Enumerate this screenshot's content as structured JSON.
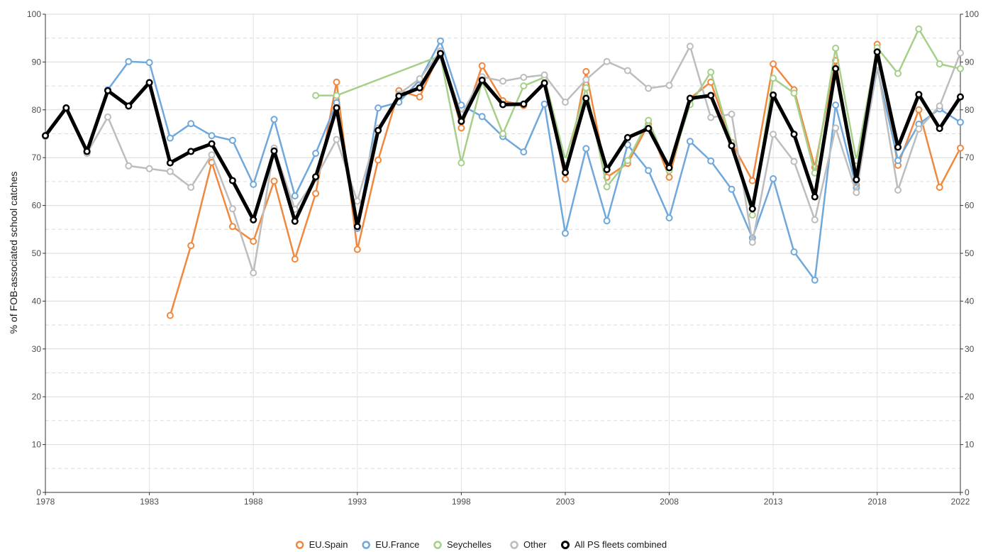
{
  "chart_data": {
    "type": "line",
    "title": "",
    "xlabel": "",
    "ylabel": "% of FOB-associated school catches",
    "xlim": [
      1978,
      2022
    ],
    "ylim": [
      0,
      100
    ],
    "x_ticks": [
      1978,
      1983,
      1988,
      1993,
      1998,
      2003,
      2008,
      2013,
      2018,
      2022
    ],
    "x_tick_labels": [
      "1978",
      "1983",
      "1988",
      "1993",
      "1998",
      "2003",
      "2008",
      "2013",
      "2018",
      "2022"
    ],
    "y_ticks": [
      0,
      10,
      20,
      30,
      40,
      50,
      60,
      70,
      80,
      90,
      100
    ],
    "y_tick_labels": [
      "0",
      "10",
      "20",
      "30",
      "40",
      "50",
      "60",
      "70",
      "80",
      "90",
      "100"
    ],
    "grid": true,
    "secondary_y_axis": true,
    "legend_position": "bottom",
    "series": [
      {
        "name": "EU.Spain",
        "color": "#F0883E",
        "points": [
          [
            1984,
            37.0
          ],
          [
            1985,
            51.6
          ],
          [
            1986,
            69.0
          ],
          [
            1987,
            55.6
          ],
          [
            1988,
            52.5
          ],
          [
            1989,
            65.1
          ],
          [
            1990,
            48.8
          ],
          [
            1991,
            62.5
          ],
          [
            1992,
            85.8
          ],
          [
            1993,
            50.8
          ],
          [
            1994,
            69.5
          ],
          [
            1995,
            84.0
          ],
          [
            1996,
            82.7
          ],
          [
            1997,
            92.3
          ],
          [
            1998,
            76.2
          ],
          [
            1999,
            89.2
          ],
          [
            2000,
            81.9
          ],
          [
            2001,
            80.9
          ],
          [
            2002,
            85.6
          ],
          [
            2003,
            65.5
          ],
          [
            2004,
            88.0
          ],
          [
            2005,
            65.9
          ],
          [
            2006,
            68.8
          ],
          [
            2007,
            77.0
          ],
          [
            2008,
            65.9
          ],
          [
            2009,
            82.4
          ],
          [
            2010,
            85.8
          ],
          [
            2011,
            73.2
          ],
          [
            2012,
            65.2
          ],
          [
            2013,
            89.6
          ],
          [
            2014,
            84.2
          ],
          [
            2015,
            68.0
          ],
          [
            2016,
            90.3
          ],
          [
            2017,
            64.3
          ],
          [
            2018,
            93.7
          ],
          [
            2019,
            68.4
          ],
          [
            2020,
            80.0
          ],
          [
            2021,
            63.8
          ],
          [
            2022,
            72.0
          ]
        ]
      },
      {
        "name": "EU.France",
        "color": "#6FA8DC",
        "points": [
          [
            1981,
            84.2
          ],
          [
            1982,
            90.1
          ],
          [
            1983,
            89.9
          ],
          [
            1984,
            74.1
          ],
          [
            1985,
            77.1
          ],
          [
            1986,
            74.6
          ],
          [
            1987,
            73.6
          ],
          [
            1988,
            64.4
          ],
          [
            1989,
            78.0
          ],
          [
            1990,
            62.0
          ],
          [
            1991,
            70.9
          ],
          [
            1992,
            81.5
          ],
          [
            1993,
            55.2
          ],
          [
            1994,
            80.4
          ],
          [
            1995,
            81.6
          ],
          [
            1996,
            86.2
          ],
          [
            1997,
            94.4
          ],
          [
            1998,
            81.0
          ],
          [
            1999,
            78.6
          ],
          [
            2000,
            74.4
          ],
          [
            2001,
            71.2
          ],
          [
            2002,
            81.2
          ],
          [
            2003,
            54.2
          ],
          [
            2004,
            71.9
          ],
          [
            2005,
            56.8
          ],
          [
            2006,
            72.7
          ],
          [
            2007,
            67.3
          ],
          [
            2008,
            57.4
          ],
          [
            2009,
            73.4
          ],
          [
            2010,
            69.3
          ],
          [
            2011,
            63.4
          ],
          [
            2012,
            53.2
          ],
          [
            2013,
            65.6
          ],
          [
            2014,
            50.3
          ],
          [
            2015,
            44.4
          ],
          [
            2016,
            81.0
          ],
          [
            2017,
            63.7
          ],
          [
            2018,
            88.8
          ],
          [
            2019,
            69.4
          ],
          [
            2020,
            77.0
          ],
          [
            2021,
            80.2
          ],
          [
            2022,
            77.4
          ]
        ]
      },
      {
        "name": "Seychelles",
        "color": "#A6D08A",
        "points": [
          [
            1991,
            83.0
          ],
          [
            1992,
            83.0
          ],
          [
            1997,
            91.3
          ],
          [
            1998,
            68.9
          ],
          [
            1999,
            86.0
          ],
          [
            2000,
            75.0
          ],
          [
            2001,
            85.0
          ],
          [
            2002,
            86.8
          ],
          [
            2003,
            69.5
          ],
          [
            2004,
            84.6
          ],
          [
            2005,
            63.9
          ],
          [
            2006,
            69.4
          ],
          [
            2007,
            77.8
          ],
          [
            2008,
            67.3
          ],
          [
            2009,
            81.1
          ],
          [
            2010,
            87.9
          ],
          [
            2011,
            73.1
          ],
          [
            2012,
            58.0
          ],
          [
            2013,
            86.6
          ],
          [
            2014,
            83.5
          ],
          [
            2015,
            66.8
          ],
          [
            2016,
            92.9
          ],
          [
            2017,
            69.4
          ],
          [
            2018,
            93.0
          ],
          [
            2019,
            87.6
          ],
          [
            2020,
            96.9
          ],
          [
            2021,
            89.6
          ],
          [
            2022,
            88.6
          ]
        ]
      },
      {
        "name": "Other",
        "color": "#BDBDBD",
        "points": [
          [
            1978,
            74.4
          ],
          [
            1979,
            80.4
          ],
          [
            1980,
            70.9
          ],
          [
            1981,
            78.5
          ],
          [
            1982,
            68.3
          ],
          [
            1983,
            67.7
          ],
          [
            1984,
            67.1
          ],
          [
            1985,
            63.8
          ],
          [
            1986,
            70.6
          ],
          [
            1987,
            59.3
          ],
          [
            1988,
            45.9
          ],
          [
            1989,
            72.0
          ],
          [
            1990,
            59.2
          ],
          [
            1991,
            65.7
          ],
          [
            1992,
            73.8
          ],
          [
            1993,
            60.9
          ],
          [
            1994,
            76.2
          ],
          [
            1995,
            83.3
          ],
          [
            1996,
            86.5
          ],
          [
            1997,
            92.3
          ],
          [
            1998,
            79.0
          ],
          [
            1999,
            86.9
          ],
          [
            2000,
            86.0
          ],
          [
            2001,
            86.8
          ],
          [
            2002,
            87.3
          ],
          [
            2003,
            81.6
          ],
          [
            2004,
            86.3
          ],
          [
            2005,
            90.1
          ],
          [
            2006,
            88.2
          ],
          [
            2007,
            84.5
          ],
          [
            2008,
            85.1
          ],
          [
            2009,
            93.3
          ],
          [
            2010,
            78.4
          ],
          [
            2011,
            79.1
          ],
          [
            2012,
            52.3
          ],
          [
            2013,
            74.9
          ],
          [
            2014,
            69.2
          ],
          [
            2015,
            57.0
          ],
          [
            2016,
            76.2
          ],
          [
            2017,
            62.7
          ],
          [
            2018,
            89.4
          ],
          [
            2019,
            63.2
          ],
          [
            2020,
            76.0
          ],
          [
            2021,
            80.8
          ],
          [
            2022,
            91.9
          ]
        ]
      },
      {
        "name": "All PS fleets combined",
        "color": "#000000",
        "points": [
          [
            1978,
            74.6
          ],
          [
            1979,
            80.4
          ],
          [
            1980,
            71.3
          ],
          [
            1981,
            84.0
          ],
          [
            1982,
            80.8
          ],
          [
            1983,
            85.7
          ],
          [
            1984,
            68.9
          ],
          [
            1985,
            71.3
          ],
          [
            1986,
            72.9
          ],
          [
            1987,
            65.2
          ],
          [
            1988,
            57.0
          ],
          [
            1989,
            71.4
          ],
          [
            1990,
            56.7
          ],
          [
            1991,
            66.0
          ],
          [
            1992,
            80.4
          ],
          [
            1993,
            55.6
          ],
          [
            1994,
            75.7
          ],
          [
            1995,
            82.9
          ],
          [
            1996,
            84.6
          ],
          [
            1997,
            91.8
          ],
          [
            1998,
            77.6
          ],
          [
            1999,
            86.2
          ],
          [
            2000,
            81.1
          ],
          [
            2001,
            81.2
          ],
          [
            2002,
            85.6
          ],
          [
            2003,
            66.9
          ],
          [
            2004,
            82.4
          ],
          [
            2005,
            67.5
          ],
          [
            2006,
            74.2
          ],
          [
            2007,
            76.1
          ],
          [
            2008,
            67.9
          ],
          [
            2009,
            82.4
          ],
          [
            2010,
            83.0
          ],
          [
            2011,
            72.5
          ],
          [
            2012,
            59.3
          ],
          [
            2013,
            83.1
          ],
          [
            2014,
            74.9
          ],
          [
            2015,
            61.8
          ],
          [
            2016,
            88.6
          ],
          [
            2017,
            65.4
          ],
          [
            2018,
            92.1
          ],
          [
            2019,
            72.2
          ],
          [
            2020,
            83.2
          ],
          [
            2021,
            76.1
          ],
          [
            2022,
            82.7
          ]
        ]
      }
    ]
  }
}
